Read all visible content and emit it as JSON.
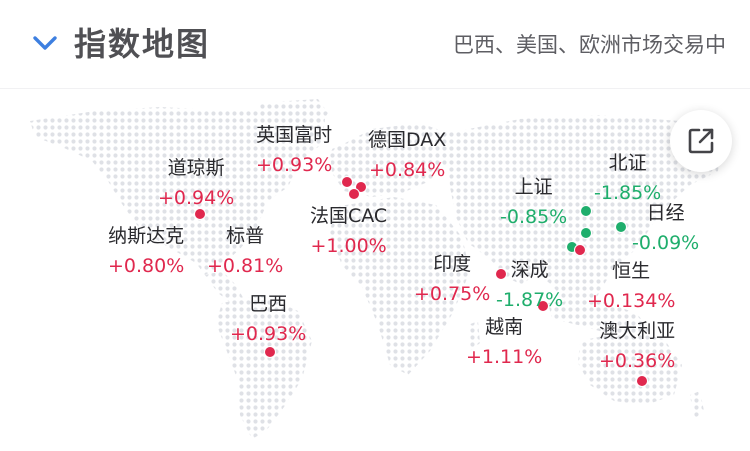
{
  "header": {
    "title": "指数地图",
    "status": "巴西、美国、欧洲市场交易中",
    "expand_icon": "chevron-down-icon"
  },
  "share_icon": "share-external-icon",
  "colors": {
    "up": "#e0284e",
    "down": "#1fae6c",
    "land_dots": "#dfe1e6"
  },
  "indices": [
    {
      "key": "dow",
      "name": "道琼斯",
      "change": "+0.94%",
      "direction": "up"
    },
    {
      "key": "nasdaq",
      "name": "纳斯达克",
      "change": "+0.80%",
      "direction": "up"
    },
    {
      "key": "sp500",
      "name": "标普",
      "change": "+0.81%",
      "direction": "up"
    },
    {
      "key": "brazil",
      "name": "巴西",
      "change": "+0.93%",
      "direction": "up"
    },
    {
      "key": "ftse",
      "name": "英国富时",
      "change": "+0.93%",
      "direction": "up"
    },
    {
      "key": "dax",
      "name": "德国DAX",
      "change": "+0.84%",
      "direction": "up"
    },
    {
      "key": "cac",
      "name": "法国CAC",
      "change": "+1.00%",
      "direction": "up"
    },
    {
      "key": "india",
      "name": "印度",
      "change": "+0.75%",
      "direction": "up"
    },
    {
      "key": "shenzhen",
      "name": "深成",
      "change": "-1.87%",
      "direction": "down"
    },
    {
      "key": "shanghai",
      "name": "上证",
      "change": "-0.85%",
      "direction": "down"
    },
    {
      "key": "beizheng",
      "name": "北证",
      "change": "-1.85%",
      "direction": "down"
    },
    {
      "key": "nikkei",
      "name": "日经",
      "change": "-0.09%",
      "direction": "down"
    },
    {
      "key": "hangseng",
      "name": "恒生",
      "change": "+0.134%",
      "direction": "up"
    },
    {
      "key": "vietnam",
      "name": "越南",
      "change": "+1.11%",
      "direction": "up"
    },
    {
      "key": "australia",
      "name": "澳大利亚",
      "change": "+0.36%",
      "direction": "up"
    }
  ]
}
